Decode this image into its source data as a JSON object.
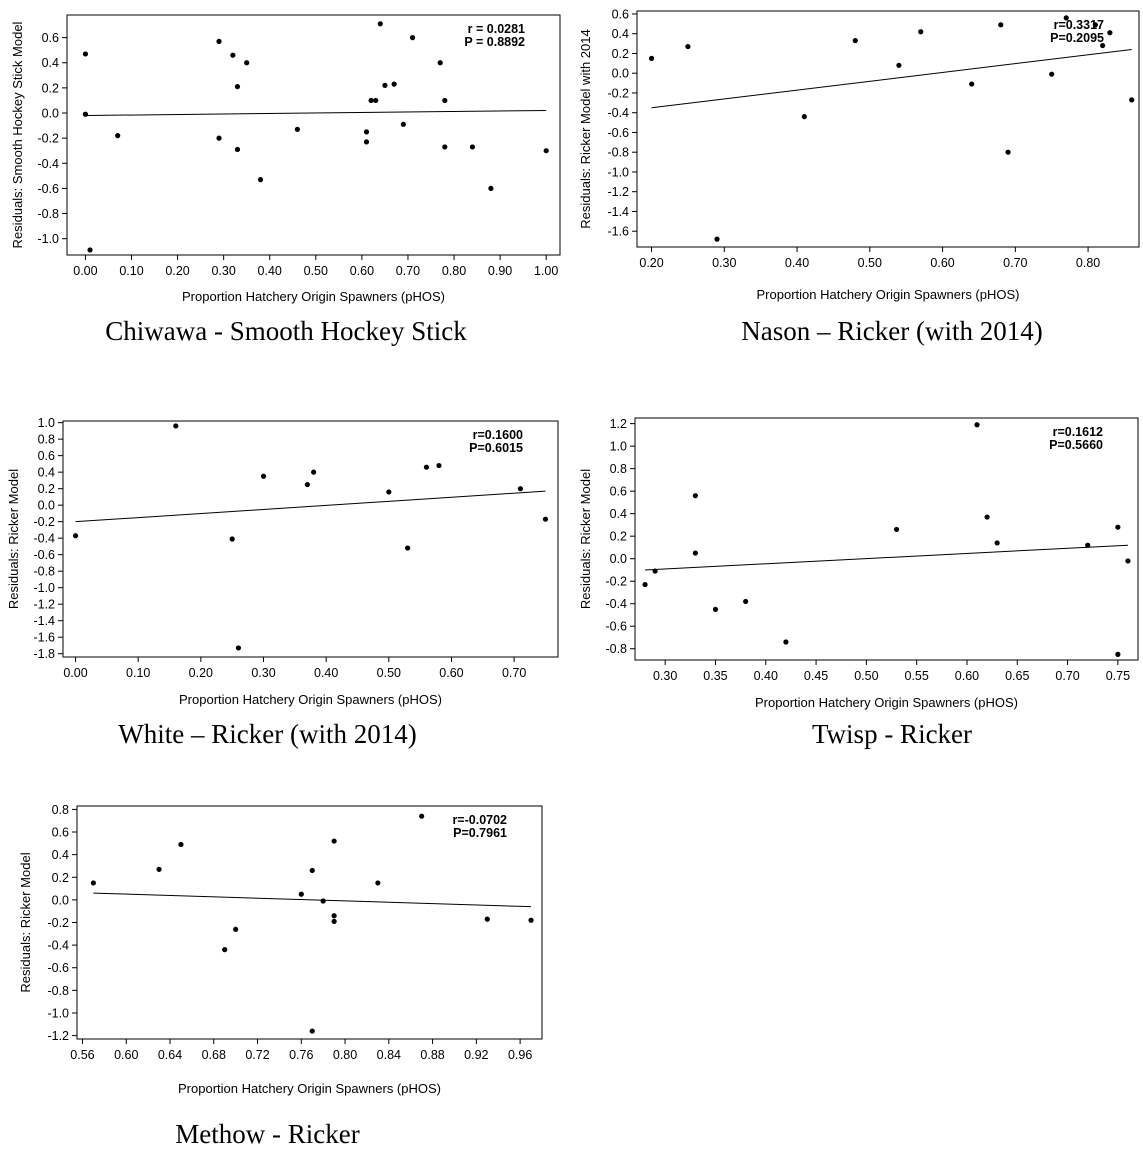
{
  "chart_data": [
    {
      "type": "scatter",
      "caption": "Chiwawa - Smooth Hockey Stick",
      "xlabel": "Proportion Hatchery Origin Spawners (pHOS)",
      "ylabel": "Residuals: Smooth Hockey Stick Model",
      "xlim": [
        -0.04,
        1.03
      ],
      "ylim": [
        -1.13,
        0.78
      ],
      "xticks": [
        0,
        0.1,
        0.2,
        0.3,
        0.4,
        0.5,
        0.6,
        0.7,
        0.8,
        0.9,
        1.0
      ],
      "xtick_labels": [
        "0.00",
        "0.10",
        "0.20",
        "0.30",
        "0.40",
        "0.50",
        "0.60",
        "0.70",
        "0.80",
        "0.90",
        "1.00"
      ],
      "yticks": [
        0.6,
        0.4,
        0.2,
        0.0,
        -0.2,
        -0.4,
        -0.6,
        -0.8,
        -1.0
      ],
      "ytick_labels": [
        "0.6",
        "0.4",
        "0.2",
        "0.0",
        "-0.2",
        "-0.4",
        "-0.6",
        "-0.8",
        "-1.0"
      ],
      "stats": [
        "r = 0.0281",
        "P = 0.8892"
      ],
      "points": [
        [
          0.0,
          0.47
        ],
        [
          0.0,
          -0.01
        ],
        [
          0.01,
          -1.09
        ],
        [
          0.07,
          -0.18
        ],
        [
          0.29,
          0.57
        ],
        [
          0.29,
          -0.2
        ],
        [
          0.32,
          0.46
        ],
        [
          0.33,
          0.21
        ],
        [
          0.33,
          -0.29
        ],
        [
          0.35,
          0.4
        ],
        [
          0.38,
          -0.53
        ],
        [
          0.46,
          -0.13
        ],
        [
          0.61,
          -0.15
        ],
        [
          0.61,
          -0.23
        ],
        [
          0.62,
          0.1
        ],
        [
          0.63,
          0.1
        ],
        [
          0.64,
          0.71
        ],
        [
          0.65,
          0.22
        ],
        [
          0.67,
          0.23
        ],
        [
          0.69,
          -0.09
        ],
        [
          0.71,
          0.6
        ],
        [
          0.77,
          0.4
        ],
        [
          0.78,
          0.1
        ],
        [
          0.78,
          -0.27
        ],
        [
          0.84,
          -0.27
        ],
        [
          0.88,
          -0.6
        ],
        [
          1.0,
          -0.3
        ]
      ],
      "fit": [
        [
          0.0,
          -0.02
        ],
        [
          1.0,
          0.02
        ]
      ]
    },
    {
      "type": "scatter",
      "caption": "Nason – Ricker (with 2014)",
      "xlabel": "Proportion Hatchery Origin Spawners (pHOS)",
      "ylabel": "Residuals: Ricker Model with 2014",
      "xlim": [
        0.18,
        0.87
      ],
      "ylim": [
        -1.76,
        0.63
      ],
      "xticks": [
        0.2,
        0.3,
        0.4,
        0.5,
        0.6,
        0.7,
        0.8
      ],
      "xtick_labels": [
        "0.20",
        "0.30",
        "0.40",
        "0.50",
        "0.60",
        "0.70",
        "0.80"
      ],
      "yticks": [
        0.6,
        0.4,
        0.2,
        0.0,
        -0.2,
        -0.4,
        -0.6,
        -0.8,
        -1.0,
        -1.2,
        -1.4,
        -1.6
      ],
      "ytick_labels": [
        "0.6",
        "0.4",
        "0.2",
        "0.0",
        "-0.2",
        "-0.4",
        "-0.6",
        "-0.8",
        "-1.0",
        "-1.2",
        "-1.4",
        "-1.6"
      ],
      "stats": [
        "r=0.3317",
        "P=0.2095"
      ],
      "points": [
        [
          0.2,
          0.15
        ],
        [
          0.25,
          0.27
        ],
        [
          0.29,
          -1.68
        ],
        [
          0.41,
          -0.44
        ],
        [
          0.48,
          0.33
        ],
        [
          0.54,
          0.08
        ],
        [
          0.57,
          0.42
        ],
        [
          0.64,
          -0.11
        ],
        [
          0.68,
          0.49
        ],
        [
          0.69,
          -0.8
        ],
        [
          0.75,
          -0.01
        ],
        [
          0.77,
          0.56
        ],
        [
          0.81,
          0.49
        ],
        [
          0.82,
          0.28
        ],
        [
          0.83,
          0.41
        ],
        [
          0.86,
          -0.27
        ]
      ],
      "fit": [
        [
          0.2,
          -0.35
        ],
        [
          0.86,
          0.24
        ]
      ]
    },
    {
      "type": "scatter",
      "caption": "White – Ricker (with 2014)",
      "xlabel": "Proportion Hatchery Origin Spawners (pHOS)",
      "ylabel": "Residuals: Ricker Model",
      "xlim": [
        -0.02,
        0.77
      ],
      "ylim": [
        -1.84,
        1.02
      ],
      "xticks": [
        0,
        0.1,
        0.2,
        0.3,
        0.4,
        0.5,
        0.6,
        0.7
      ],
      "xtick_labels": [
        "0.00",
        "0.10",
        "0.20",
        "0.30",
        "0.40",
        "0.50",
        "0.60",
        "0.70"
      ],
      "yticks": [
        1.0,
        0.8,
        0.6,
        0.4,
        0.2,
        0.0,
        -0.2,
        -0.4,
        -0.6,
        -0.8,
        -1.0,
        -1.2,
        -1.4,
        -1.6,
        -1.8
      ],
      "ytick_labels": [
        "1.0",
        "0.8",
        "0.6",
        "0.4",
        "0.2",
        "0.0",
        "-0.2",
        "-0.4",
        "-0.6",
        "-0.8",
        "-1.0",
        "-1.2",
        "-1.4",
        "-1.6",
        "-1.8"
      ],
      "stats": [
        "r=0.1600",
        "P=0.6015"
      ],
      "points": [
        [
          0.0,
          -0.37
        ],
        [
          0.16,
          0.96
        ],
        [
          0.25,
          -0.41
        ],
        [
          0.26,
          -1.73
        ],
        [
          0.3,
          0.35
        ],
        [
          0.37,
          0.25
        ],
        [
          0.38,
          0.4
        ],
        [
          0.5,
          0.16
        ],
        [
          0.53,
          -0.52
        ],
        [
          0.56,
          0.46
        ],
        [
          0.58,
          0.48
        ],
        [
          0.71,
          0.2
        ],
        [
          0.75,
          -0.17
        ]
      ],
      "fit": [
        [
          0.0,
          -0.2
        ],
        [
          0.75,
          0.17
        ]
      ]
    },
    {
      "type": "scatter",
      "caption": "Twisp - Ricker",
      "xlabel": "Proportion Hatchery Origin Spawners (pHOS)",
      "ylabel": "Residuals: Ricker Model",
      "xlim": [
        0.27,
        0.77
      ],
      "ylim": [
        -0.9,
        1.25
      ],
      "xticks": [
        0.3,
        0.35,
        0.4,
        0.45,
        0.5,
        0.55,
        0.6,
        0.65,
        0.7,
        0.75
      ],
      "xtick_labels": [
        "0.30",
        "0.35",
        "0.40",
        "0.45",
        "0.50",
        "0.55",
        "0.60",
        "0.65",
        "0.70",
        "0.75"
      ],
      "yticks": [
        1.2,
        1.0,
        0.8,
        0.6,
        0.4,
        0.2,
        0.0,
        -0.2,
        -0.4,
        -0.6,
        -0.8
      ],
      "ytick_labels": [
        "1.2",
        "1.0",
        "0.8",
        "0.6",
        "0.4",
        "0.2",
        "0.0",
        "-0.2",
        "-0.4",
        "-0.6",
        "-0.8"
      ],
      "stats": [
        "r=0.1612",
        "P=0.5660"
      ],
      "points": [
        [
          0.28,
          -0.23
        ],
        [
          0.29,
          -0.11
        ],
        [
          0.33,
          0.56
        ],
        [
          0.33,
          0.05
        ],
        [
          0.35,
          -0.45
        ],
        [
          0.38,
          -0.38
        ],
        [
          0.42,
          -0.74
        ],
        [
          0.53,
          0.26
        ],
        [
          0.61,
          1.19
        ],
        [
          0.62,
          0.37
        ],
        [
          0.63,
          0.14
        ],
        [
          0.72,
          0.12
        ],
        [
          0.75,
          0.28
        ],
        [
          0.75,
          -0.85
        ],
        [
          0.76,
          -0.02
        ]
      ],
      "fit": [
        [
          0.28,
          -0.1
        ],
        [
          0.76,
          0.12
        ]
      ]
    },
    {
      "type": "scatter",
      "caption": "Methow - Ricker",
      "xlabel": "Proportion Hatchery Origin Spawners (pHOS)",
      "ylabel": "Residuals: Ricker Model",
      "xlim": [
        0.555,
        0.98
      ],
      "ylim": [
        -1.23,
        0.83
      ],
      "xticks": [
        0.56,
        0.6,
        0.64,
        0.68,
        0.72,
        0.76,
        0.8,
        0.84,
        0.88,
        0.92,
        0.96
      ],
      "xtick_labels": [
        "0.56",
        "0.60",
        "0.64",
        "0.68",
        "0.72",
        "0.76",
        "0.80",
        "0.84",
        "0.88",
        "0.92",
        "0.96"
      ],
      "yticks": [
        0.8,
        0.6,
        0.4,
        0.2,
        0.0,
        -0.2,
        -0.4,
        -0.6,
        -0.8,
        -1.0,
        -1.2
      ],
      "ytick_labels": [
        "0.8",
        "0.6",
        "0.4",
        "0.2",
        "0.0",
        "-0.2",
        "-0.4",
        "-0.6",
        "-0.8",
        "-1.0",
        "-1.2"
      ],
      "stats": [
        "r=-0.0702",
        "P=0.7961"
      ],
      "points": [
        [
          0.57,
          0.15
        ],
        [
          0.63,
          0.27
        ],
        [
          0.65,
          0.49
        ],
        [
          0.69,
          -0.44
        ],
        [
          0.7,
          -0.26
        ],
        [
          0.76,
          0.05
        ],
        [
          0.77,
          0.26
        ],
        [
          0.77,
          -1.16
        ],
        [
          0.78,
          -0.01
        ],
        [
          0.79,
          0.52
        ],
        [
          0.79,
          -0.14
        ],
        [
          0.79,
          -0.19
        ],
        [
          0.83,
          0.15
        ],
        [
          0.87,
          0.74
        ],
        [
          0.93,
          -0.17
        ],
        [
          0.97,
          -0.18
        ]
      ],
      "fit": [
        [
          0.57,
          0.06
        ],
        [
          0.97,
          -0.06
        ]
      ]
    }
  ]
}
